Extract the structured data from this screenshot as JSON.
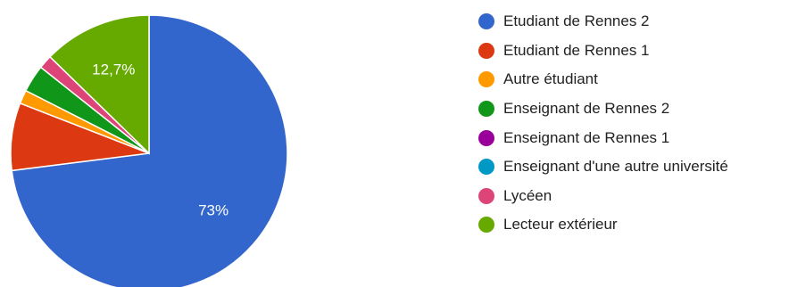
{
  "chart_data": {
    "type": "pie",
    "title": "",
    "slices": [
      {
        "label": "Etudiant de Rennes 2",
        "value": 73.0,
        "color": "#3366cc",
        "data_label": "73%"
      },
      {
        "label": "Etudiant de Rennes 1",
        "value": 7.9,
        "color": "#dc3912",
        "data_label": ""
      },
      {
        "label": "Autre étudiant",
        "value": 1.6,
        "color": "#ff9900",
        "data_label": ""
      },
      {
        "label": "Enseignant de Rennes 2",
        "value": 3.2,
        "color": "#109618",
        "data_label": ""
      },
      {
        "label": "Enseignant de Rennes 1",
        "value": 0.0,
        "color": "#990099",
        "data_label": ""
      },
      {
        "label": "Enseignant d'une autre université",
        "value": 0.0,
        "color": "#0099c6",
        "data_label": ""
      },
      {
        "label": "Lycéen",
        "value": 1.6,
        "color": "#dd4477",
        "data_label": ""
      },
      {
        "label": "Lecteur extérieur",
        "value": 12.7,
        "color": "#66aa00",
        "data_label": "12,7%"
      }
    ],
    "legend_position": "right"
  }
}
